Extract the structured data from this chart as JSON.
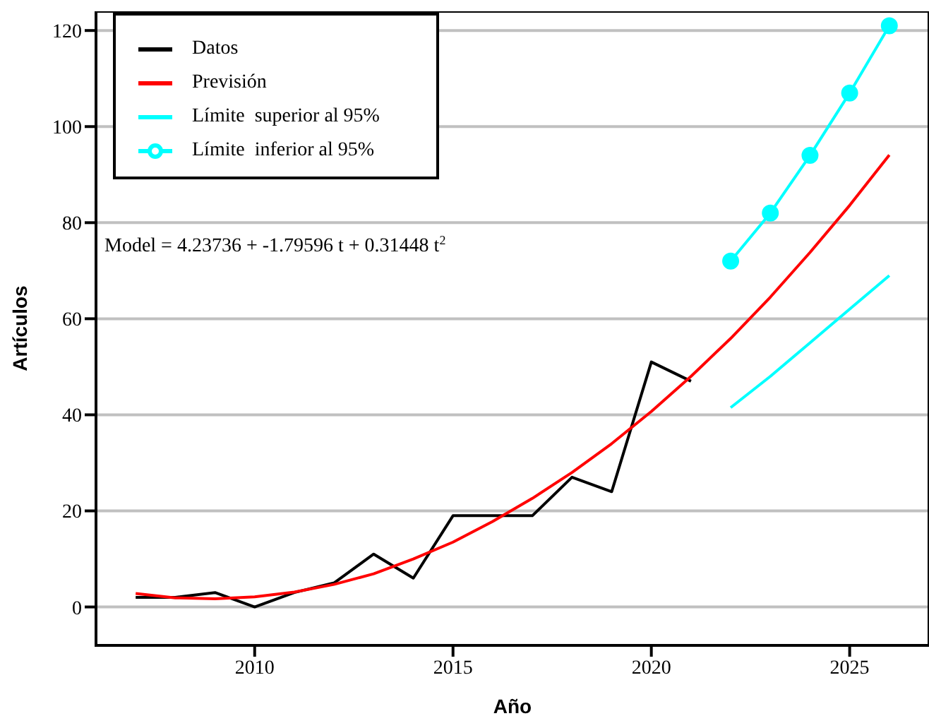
{
  "chart_data": {
    "type": "line",
    "xlabel": "Año",
    "ylabel": "Artículos",
    "xlim": [
      2006,
      2027
    ],
    "xticks": [
      2010,
      2015,
      2020,
      2025
    ],
    "ylim": [
      -8,
      124
    ],
    "yticks": [
      0,
      20,
      40,
      60,
      80,
      100,
      120
    ],
    "grid": "y",
    "legend": "top left",
    "line_style": "solid",
    "annotations": [
      {
        "text": "Model = 4.23736 + -1.79596 t  + 0.31448 t$^{2}$"
      }
    ],
    "series": [
      {
        "name": "Datos",
        "color": "#000000",
        "marker": "none",
        "x": [
          2007,
          2008,
          2009,
          2010,
          2011,
          2012,
          2013,
          2014,
          2015,
          2016,
          2017,
          2018,
          2019,
          2020,
          2021
        ],
        "values": [
          2,
          2,
          3,
          0,
          3,
          5,
          11,
          6,
          19,
          19,
          19,
          27,
          24,
          51,
          47
        ]
      },
      {
        "name": "Previsión",
        "color": "#ff0000",
        "marker": "none",
        "x": [
          2007,
          2008,
          2009,
          2010,
          2011,
          2012,
          2013,
          2014,
          2015,
          2016,
          2017,
          2018,
          2019,
          2020,
          2021,
          2022,
          2023,
          2024,
          2025,
          2026
        ],
        "values": [
          2.8,
          1.9,
          1.7,
          2.1,
          3.1,
          4.7,
          6.9,
          10,
          13.5,
          17.8,
          22.6,
          28,
          34,
          40.7,
          48,
          55.9,
          64.5,
          73.8,
          83.6,
          94.1
        ]
      },
      {
        "name": "Límite  superior al 95%",
        "color": "#00ffff",
        "marker": "none",
        "x": [
          2022,
          2023,
          2024,
          2025,
          2026
        ],
        "values": [
          41.5,
          48,
          55,
          62,
          69
        ]
      },
      {
        "name": "Límite  inferior al 95%",
        "color": "#00ffff",
        "marker": "circle",
        "x": [
          2022,
          2023,
          2024,
          2025,
          2026
        ],
        "values": [
          72,
          82,
          94,
          107,
          121
        ]
      }
    ]
  }
}
